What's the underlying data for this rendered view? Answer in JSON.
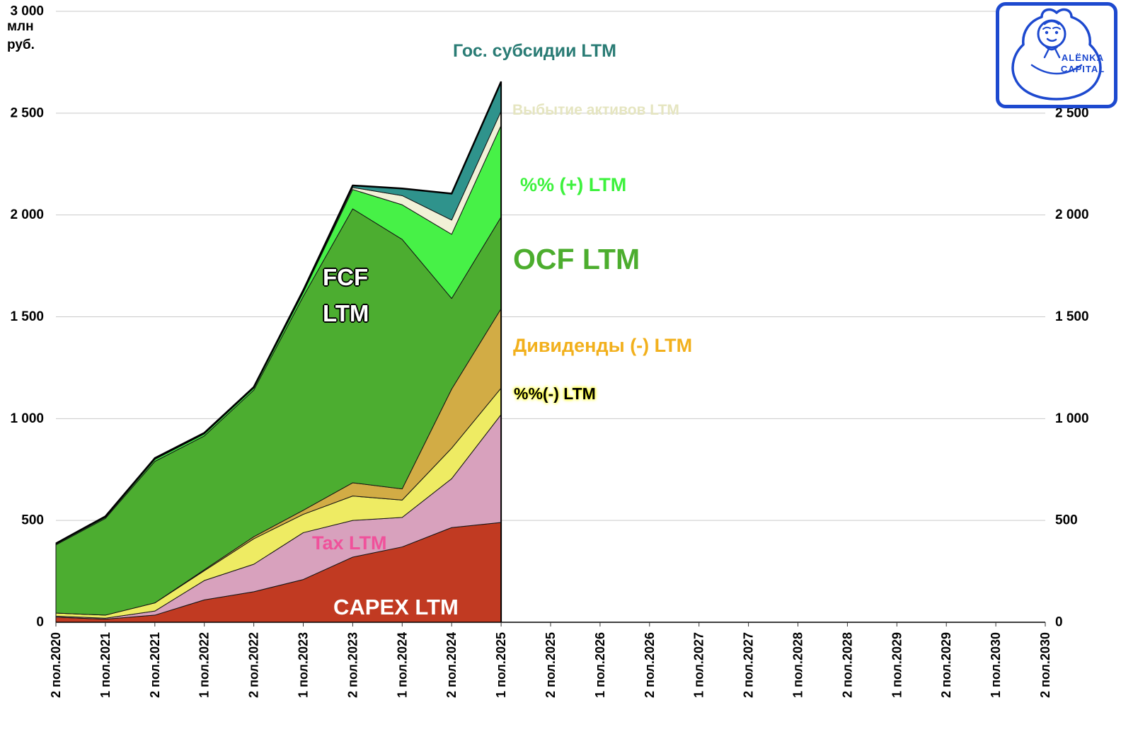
{
  "axis": {
    "unit_line1": "млн",
    "unit_line2": "руб."
  },
  "logo": {
    "line1": "ALЁNKA",
    "line2": "CAPITAL",
    "color": "#1d49cf"
  },
  "annotations": {
    "gos_subsidii": "Гос. субсидии LTM",
    "vybytie": "Выбытие активов LTM",
    "pct_plus": "%% (+) LTM",
    "ocf": "OCF LTM",
    "fcf_line1": "FCF",
    "fcf_line2": "LTM",
    "dividendy": "Дивиденды  (-) LTM",
    "pct_minus": "%%(-) LTM",
    "tax": "Tax LTM",
    "capex": "CAPEX LTM"
  },
  "chart_data": {
    "type": "area",
    "stacked": true,
    "title": "",
    "unit": "млн руб.",
    "ylim": [
      0,
      3000
    ],
    "grid": "horizontal",
    "legend_position": "inline-annotations",
    "total_line_color": "#000000",
    "x_labels": [
      "2 пол.2020",
      "1 пол.2021",
      "2 пол.2021",
      "1 пол.2022",
      "2 пол.2022",
      "1 пол.2023",
      "2 пол.2023",
      "1 пол.2024",
      "2 пол.2024",
      "1 пол.2025",
      "2 пол.2025",
      "1 пол.2026",
      "2 пол.2026",
      "1 пол.2027",
      "2 пол.2027",
      "1 пол.2028",
      "2 пол.2028",
      "1 пол.2029",
      "2 пол.2029",
      "1 пол.2030",
      "2 пол.2030"
    ],
    "yticks": [
      {
        "value": 0,
        "label": "0"
      },
      {
        "value": 500,
        "label": "500"
      },
      {
        "value": 1000,
        "label": "1 000"
      },
      {
        "value": 1500,
        "label": "1 500"
      },
      {
        "value": 2000,
        "label": "2 000"
      },
      {
        "value": 2500,
        "label": "2 500"
      },
      {
        "value": 3000,
        "label": "3 000"
      }
    ],
    "series": [
      {
        "name": "CAPEX LTM",
        "color": "#c13a22",
        "values": [
          25,
          15,
          35,
          110,
          150,
          210,
          320,
          370,
          465,
          490
        ]
      },
      {
        "name": "Tax LTM",
        "color": "#d8a1bd",
        "values": [
          5,
          5,
          20,
          95,
          135,
          230,
          180,
          145,
          240,
          530
        ]
      },
      {
        "name": "%%(-) LTM",
        "color": "#eeeb63",
        "values": [
          15,
          15,
          40,
          48,
          125,
          90,
          120,
          85,
          150,
          130
        ]
      },
      {
        "name": "Дивиденды (-) LTM",
        "color": "#d2ac45",
        "values": [
          0,
          0,
          0,
          5,
          10,
          20,
          65,
          55,
          290,
          390
        ]
      },
      {
        "name": "FCF LTM",
        "color": "#4cad30",
        "values": [
          335,
          475,
          695,
          657,
          720,
          1050,
          1345,
          1225,
          445,
          450
        ]
      },
      {
        "name": "%% (+) LTM",
        "color": "#47f147",
        "values": [
          5,
          5,
          10,
          10,
          10,
          20,
          95,
          170,
          315,
          450
        ]
      },
      {
        "name": "Выбытие активов LTM",
        "color": "#f1f1d7",
        "values": [
          0,
          2,
          3,
          3,
          3,
          5,
          10,
          45,
          70,
          70
        ]
      },
      {
        "name": "Гос. субсидии LTM",
        "color": "#2f938c",
        "values": [
          2,
          3,
          3,
          2,
          2,
          5,
          10,
          35,
          130,
          145
        ]
      }
    ]
  }
}
